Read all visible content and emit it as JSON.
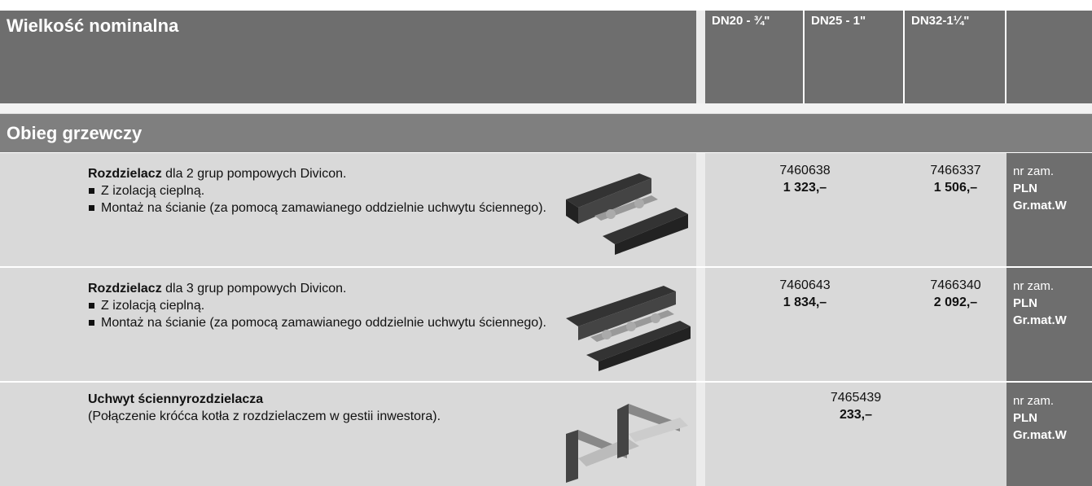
{
  "header": {
    "title": "Wielkość nominalna",
    "columns": [
      "DN20 - ¾\"",
      "DN25 - 1\"",
      "DN32-1¼\""
    ]
  },
  "section": {
    "title": "Obieg grzewczy"
  },
  "rows": [
    {
      "title_bold": "Rozdzielacz",
      "title_rest": " dla 2 grup pompowych Divicon.",
      "bullets": [
        "Z izolacją cieplną.",
        "Montaż na ścianie (za pomocą zamawianego oddzielnie uchwytu ściennego)."
      ],
      "prices": [
        {
          "order": "7460638",
          "price": "1 323,–"
        },
        {
          "order": "7466337",
          "price": "1 506,–"
        }
      ],
      "labels": [
        "nr zam.",
        "PLN",
        "Gr.mat.W"
      ]
    },
    {
      "title_bold": "Rozdzielacz",
      "title_rest": " dla 3 grup pompowych Divicon.",
      "bullets": [
        "Z izolacją cieplną.",
        "Montaż na ścianie (za pomocą zamawianego oddzielnie uchwytu ściennego)."
      ],
      "prices": [
        {
          "order": "7460643",
          "price": "1 834,–"
        },
        {
          "order": "7466340",
          "price": "2 092,–"
        }
      ],
      "labels": [
        "nr zam.",
        "PLN",
        "Gr.mat.W"
      ]
    },
    {
      "title_bold": "Uchwyt ściennyrozdzielacza",
      "subtitle": "(Połączenie króćca kotła z rozdzielaczem w gestii inwestora).",
      "prices": [
        {
          "order": "7465439",
          "price": "233,–"
        }
      ],
      "labels": [
        "nr zam.",
        "PLN",
        "Gr.mat.W"
      ]
    }
  ]
}
